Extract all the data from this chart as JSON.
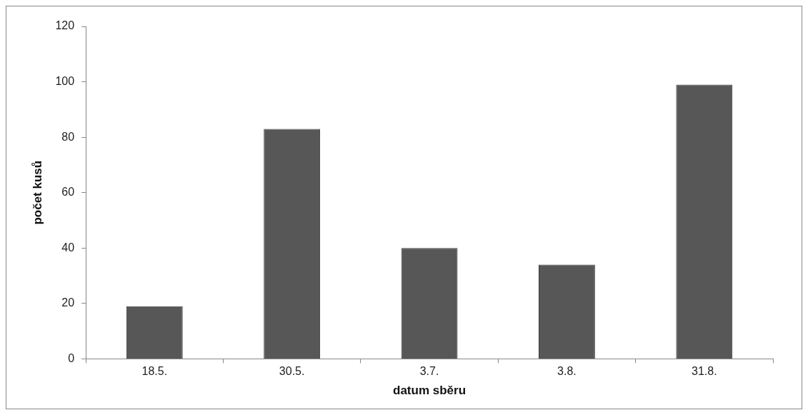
{
  "chart_data": {
    "type": "bar",
    "xlabel": "datum sběru",
    "ylabel": "počet kusů",
    "categories": [
      "18.5.",
      "30.5.",
      "3.7.",
      "3.8.",
      "31.8."
    ],
    "series": [
      {
        "color": "#575757",
        "values": [
          19,
          83,
          40,
          34,
          99
        ]
      }
    ],
    "ylim": [
      0,
      120
    ],
    "yticks": [
      0,
      20,
      40,
      60,
      80,
      100,
      120
    ],
    "grid": false,
    "legend": false
  }
}
